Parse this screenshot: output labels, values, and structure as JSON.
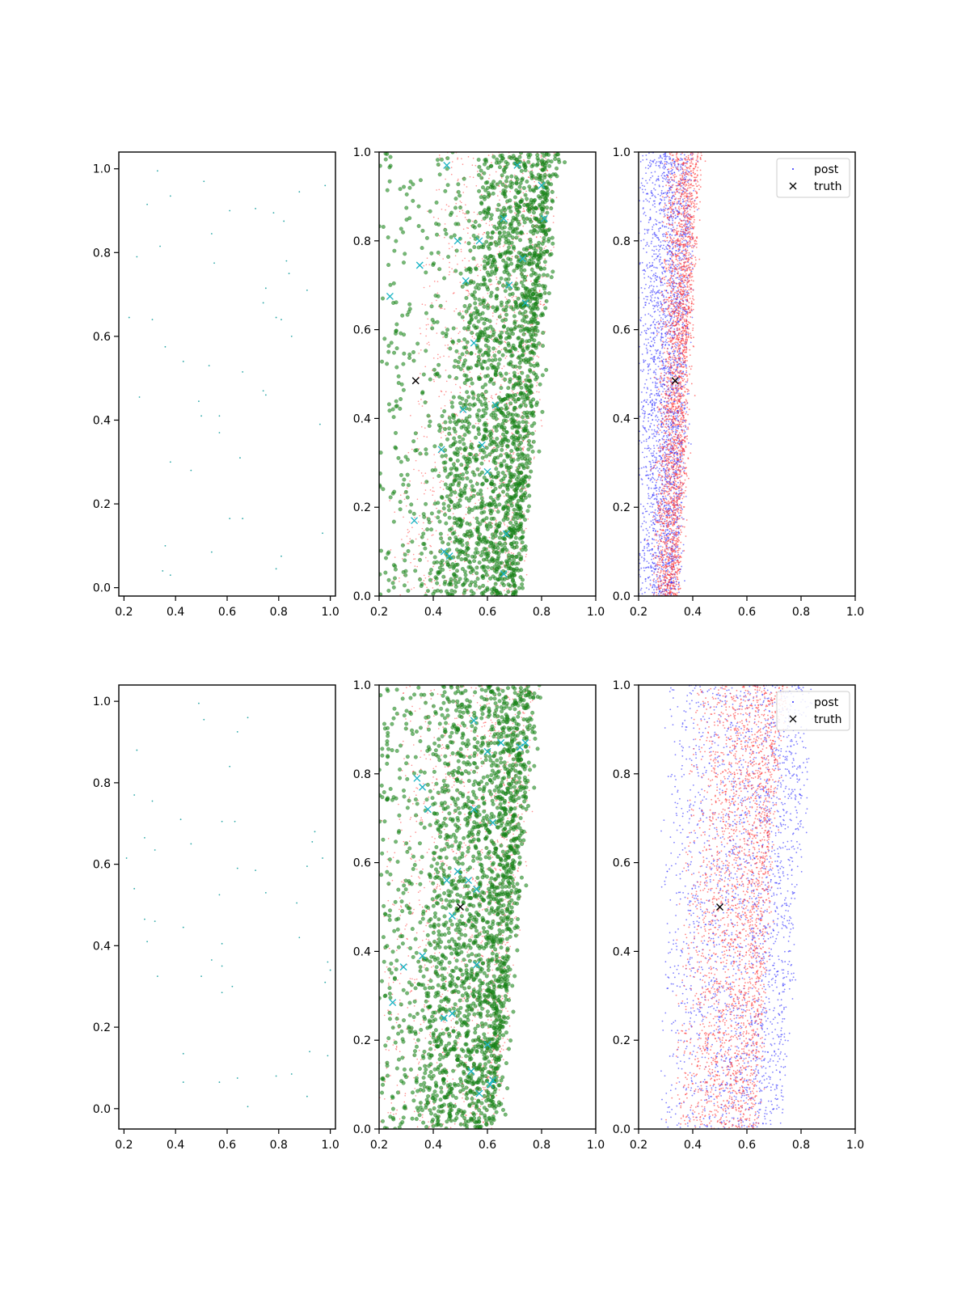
{
  "colors": {
    "obs": "#2ca7a7",
    "cloud": "#1a8a1a",
    "cloud_edge": "#0a5a0a",
    "cyan_x": "#17b3c4",
    "red": "#ff3030",
    "blue": "#2a2aff",
    "truth": "#000000"
  },
  "chart_data": [
    {
      "panel": "row1-col1",
      "type": "scatter",
      "xlim": [
        0.18,
        1.02
      ],
      "ylim": [
        -0.02,
        1.04
      ],
      "xticks": [
        "0.2",
        "0.4",
        "0.6",
        "0.8",
        "1.0"
      ],
      "yticks": [
        "0.0",
        "0.2",
        "0.4",
        "0.6",
        "0.8",
        "1.0"
      ],
      "series": [
        {
          "marker": "point",
          "color": "obs",
          "points": [
            [
              0.33,
              0.995
            ],
            [
              0.51,
              0.97
            ],
            [
              0.98,
              0.96
            ],
            [
              0.29,
              0.915
            ],
            [
              0.38,
              0.935
            ],
            [
              0.88,
              0.945
            ],
            [
              0.61,
              0.9
            ],
            [
              0.71,
              0.905
            ],
            [
              0.78,
              0.895
            ],
            [
              0.82,
              0.875
            ],
            [
              0.54,
              0.845
            ],
            [
              0.25,
              0.79
            ],
            [
              0.34,
              0.815
            ],
            [
              0.55,
              0.775
            ],
            [
              0.83,
              0.78
            ],
            [
              0.84,
              0.75
            ],
            [
              0.91,
              0.71
            ],
            [
              0.75,
              0.715
            ],
            [
              0.74,
              0.68
            ],
            [
              0.22,
              0.645
            ],
            [
              0.31,
              0.64
            ],
            [
              0.79,
              0.645
            ],
            [
              0.81,
              0.64
            ],
            [
              0.85,
              0.6
            ],
            [
              0.36,
              0.575
            ],
            [
              0.43,
              0.54
            ],
            [
              0.53,
              0.53
            ],
            [
              0.66,
              0.515
            ],
            [
              0.26,
              0.455
            ],
            [
              0.49,
              0.445
            ],
            [
              0.74,
              0.47
            ],
            [
              0.75,
              0.46
            ],
            [
              0.5,
              0.41
            ],
            [
              0.57,
              0.41
            ],
            [
              0.96,
              0.39
            ],
            [
              0.57,
              0.37
            ],
            [
              0.38,
              0.3
            ],
            [
              0.46,
              0.28
            ],
            [
              0.65,
              0.31
            ],
            [
              0.61,
              0.165
            ],
            [
              0.66,
              0.165
            ],
            [
              0.36,
              0.1
            ],
            [
              0.54,
              0.085
            ],
            [
              0.97,
              0.13
            ],
            [
              0.81,
              0.075
            ],
            [
              0.79,
              0.045
            ],
            [
              0.35,
              0.04
            ],
            [
              0.38,
              0.03
            ]
          ]
        }
      ]
    },
    {
      "panel": "row1-col2",
      "type": "scatter",
      "xlim": [
        0.2,
        1.0
      ],
      "ylim": [
        0.0,
        1.0
      ],
      "xticks": [
        "0.2",
        "0.4",
        "0.6",
        "0.8",
        "1.0"
      ],
      "yticks": [
        "0.0",
        "0.2",
        "0.4",
        "0.6",
        "0.8",
        "1.0"
      ],
      "truth": [
        0.335,
        0.485
      ],
      "band": {
        "left_bottom": 0.4,
        "left_top": 0.58,
        "right_bottom": 0.7,
        "right_top": 0.84,
        "n": 2300
      },
      "cyan_x": [
        [
          0.24,
          0.675
        ],
        [
          0.35,
          0.745
        ],
        [
          0.45,
          0.97
        ],
        [
          0.49,
          0.8
        ],
        [
          0.52,
          0.71
        ],
        [
          0.57,
          0.8
        ],
        [
          0.71,
          0.97
        ],
        [
          0.8,
          0.925
        ],
        [
          0.81,
          0.85
        ],
        [
          0.66,
          0.85
        ],
        [
          0.73,
          0.76
        ],
        [
          0.74,
          0.66
        ],
        [
          0.33,
          0.17
        ],
        [
          0.44,
          0.1
        ],
        [
          0.46,
          0.09
        ],
        [
          0.51,
          0.42
        ],
        [
          0.55,
          0.57
        ],
        [
          0.58,
          0.34
        ],
        [
          0.43,
          0.33
        ],
        [
          0.66,
          0.05
        ],
        [
          0.67,
          0.14
        ],
        [
          0.63,
          0.43
        ],
        [
          0.6,
          0.28
        ],
        [
          0.68,
          0.7
        ]
      ]
    },
    {
      "panel": "row1-col3",
      "type": "scatter",
      "xlim": [
        0.2,
        1.0
      ],
      "ylim": [
        0.0,
        1.0
      ],
      "xticks": [
        "0.2",
        "0.4",
        "0.6",
        "0.8",
        "1.0"
      ],
      "yticks": [
        "0.0",
        "0.2",
        "0.4",
        "0.6",
        "0.8",
        "1.0"
      ],
      "truth": [
        0.335,
        0.485
      ],
      "blue_band": {
        "left_bottom": 0.2,
        "left_top": 0.2,
        "right_bottom": 0.34,
        "right_top": 0.4,
        "n": 2600
      },
      "red_band": {
        "left_bottom": 0.25,
        "left_top": 0.3,
        "right_bottom": 0.34,
        "right_top": 0.42,
        "n": 2600
      },
      "legend": {
        "position": "top-right",
        "entries": [
          "post",
          "truth"
        ]
      }
    },
    {
      "panel": "row2-col1",
      "type": "scatter",
      "xlim": [
        0.18,
        1.02
      ],
      "ylim": [
        -0.05,
        1.04
      ],
      "xticks": [
        "0.2",
        "0.4",
        "0.6",
        "0.8",
        "1.0"
      ],
      "yticks": [
        "0.0",
        "0.2",
        "0.4",
        "0.6",
        "0.8",
        "1.0"
      ],
      "series": [
        {
          "marker": "point",
          "color": "obs",
          "points": [
            [
              0.49,
              0.995
            ],
            [
              0.51,
              0.955
            ],
            [
              0.68,
              0.96
            ],
            [
              0.64,
              0.925
            ],
            [
              0.25,
              0.88
            ],
            [
              0.61,
              0.84
            ],
            [
              0.24,
              0.77
            ],
            [
              0.31,
              0.755
            ],
            [
              0.42,
              0.71
            ],
            [
              0.58,
              0.705
            ],
            [
              0.63,
              0.705
            ],
            [
              0.94,
              0.68
            ],
            [
              0.28,
              0.665
            ],
            [
              0.46,
              0.65
            ],
            [
              0.93,
              0.655
            ],
            [
              0.32,
              0.635
            ],
            [
              0.21,
              0.615
            ],
            [
              0.97,
              0.615
            ],
            [
              0.64,
              0.59
            ],
            [
              0.71,
              0.585
            ],
            [
              0.91,
              0.595
            ],
            [
              0.24,
              0.54
            ],
            [
              0.75,
              0.53
            ],
            [
              0.57,
              0.525
            ],
            [
              0.87,
              0.505
            ],
            [
              0.28,
              0.465
            ],
            [
              0.32,
              0.46
            ],
            [
              0.43,
              0.445
            ],
            [
              0.88,
              0.42
            ],
            [
              0.29,
              0.41
            ],
            [
              0.58,
              0.405
            ],
            [
              0.54,
              0.365
            ],
            [
              0.58,
              0.35
            ],
            [
              0.99,
              0.36
            ],
            [
              1.0,
              0.34
            ],
            [
              0.33,
              0.325
            ],
            [
              0.5,
              0.325
            ],
            [
              0.98,
              0.31
            ],
            [
              0.62,
              0.3
            ],
            [
              0.58,
              0.285
            ],
            [
              0.43,
              0.135
            ],
            [
              0.92,
              0.14
            ],
            [
              0.99,
              0.13
            ],
            [
              0.43,
              0.065
            ],
            [
              0.57,
              0.065
            ],
            [
              0.64,
              0.075
            ],
            [
              0.79,
              0.08
            ],
            [
              0.85,
              0.085
            ],
            [
              0.91,
              0.03
            ],
            [
              0.68,
              0.005
            ]
          ]
        }
      ]
    },
    {
      "panel": "row2-col2",
      "type": "scatter",
      "xlim": [
        0.2,
        1.0
      ],
      "ylim": [
        0.0,
        1.0
      ],
      "xticks": [
        "0.2",
        "0.4",
        "0.6",
        "0.8",
        "1.0"
      ],
      "yticks": [
        "0.0",
        "0.2",
        "0.4",
        "0.6",
        "0.8",
        "1.0"
      ],
      "truth": [
        0.5,
        0.5
      ],
      "band": {
        "left_bottom": 0.35,
        "left_top": 0.43,
        "right_bottom": 0.62,
        "right_top": 0.76,
        "n": 2300
      },
      "cyan_x": [
        [
          0.25,
          0.285
        ],
        [
          0.29,
          0.365
        ],
        [
          0.34,
          0.79
        ],
        [
          0.36,
          0.77
        ],
        [
          0.38,
          0.72
        ],
        [
          0.45,
          0.56
        ],
        [
          0.49,
          0.58
        ],
        [
          0.53,
          0.56
        ],
        [
          0.55,
          0.72
        ],
        [
          0.56,
          0.54
        ],
        [
          0.6,
          0.85
        ],
        [
          0.65,
          0.87
        ],
        [
          0.72,
          0.86
        ],
        [
          0.74,
          0.87
        ],
        [
          0.36,
          0.39
        ],
        [
          0.44,
          0.25
        ],
        [
          0.47,
          0.26
        ],
        [
          0.54,
          0.13
        ],
        [
          0.61,
          0.1
        ],
        [
          0.62,
          0.11
        ],
        [
          0.57,
          0.08
        ],
        [
          0.55,
          0.92
        ],
        [
          0.62,
          0.69
        ],
        [
          0.47,
          0.48
        ],
        [
          0.56,
          0.37
        ],
        [
          0.6,
          0.19
        ]
      ]
    },
    {
      "panel": "row2-col3",
      "type": "scatter",
      "xlim": [
        0.2,
        1.0
      ],
      "ylim": [
        0.0,
        1.0
      ],
      "xticks": [
        "0.2",
        "0.4",
        "0.6",
        "0.8",
        "1.0"
      ],
      "yticks": [
        "0.0",
        "0.2",
        "0.4",
        "0.6",
        "0.8",
        "1.0"
      ],
      "truth": [
        0.5,
        0.5
      ],
      "blue_band": {
        "left_bottom": 0.28,
        "left_top": 0.3,
        "right_bottom": 0.72,
        "right_top": 0.84,
        "n": 2300
      },
      "red_band": {
        "left_bottom": 0.32,
        "left_top": 0.4,
        "right_bottom": 0.63,
        "right_top": 0.73,
        "n": 2600
      },
      "legend": {
        "position": "top-right",
        "entries": [
          "post",
          "truth"
        ]
      }
    }
  ]
}
